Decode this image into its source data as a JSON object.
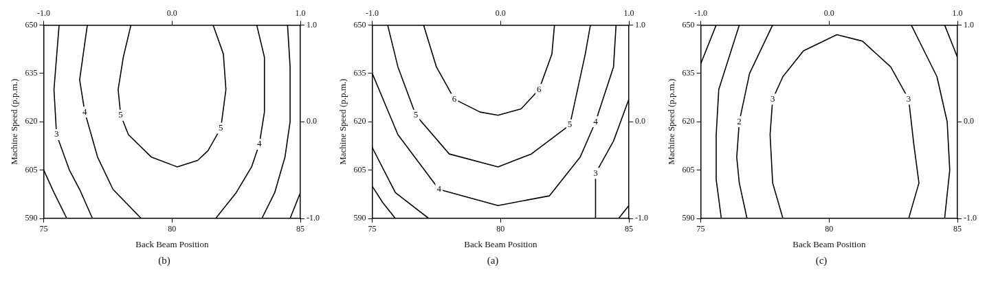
{
  "chart_data": [
    {
      "type": "line",
      "xlabel": "Back Beam Position",
      "ylabel": "Machine Speed (p.p.m.)",
      "annotations": [
        "(b)"
      ],
      "xlim": [
        75,
        85
      ],
      "xticks": [
        75,
        80,
        85
      ],
      "ylim": [
        590,
        650
      ],
      "yticks": [
        590,
        605,
        620,
        635,
        650
      ],
      "x2lim": [
        -1,
        1
      ],
      "x2ticks": [
        {
          "value": -1,
          "label": "-1.0"
        },
        {
          "value": 0,
          "label": "0.0"
        },
        {
          "value": 1,
          "label": "1.0"
        }
      ],
      "y2lim": [
        -1,
        1
      ],
      "y2ticks": [
        {
          "value": -1,
          "label": "-1.0"
        },
        {
          "value": 0,
          "label": "0.0"
        },
        {
          "value": 1,
          "label": "1.0"
        }
      ],
      "marker": "none",
      "line_style": "solid",
      "legend": false,
      "series": [
        {
          "color": "#000000",
          "x": [
            75.0,
            75.4,
            75.9
          ],
          "values": [
            605,
            598,
            590
          ]
        },
        {
          "name": "3",
          "color": "#000000",
          "x": [
            75.6,
            75.4,
            75.5,
            76.0,
            76.4,
            76.9
          ],
          "values": [
            650,
            630,
            616,
            605,
            599,
            590
          ]
        },
        {
          "name": "4",
          "color": "#000000",
          "x": [
            76.7,
            76.4,
            76.6,
            77.1,
            77.7,
            78.8
          ],
          "values": [
            650,
            633,
            623,
            609,
            599,
            590
          ]
        },
        {
          "name": "5",
          "color": "#000000",
          "x": [
            78.4,
            78.1,
            77.9,
            78.0,
            78.3,
            79.2,
            80.2,
            81.0,
            81.4,
            81.9,
            82.1,
            82.0,
            81.6
          ],
          "values": [
            650,
            640,
            630,
            622,
            616,
            609,
            606,
            608,
            611,
            618,
            630,
            641,
            650
          ]
        },
        {
          "name": "4",
          "color": "#000000",
          "x": [
            83.3,
            83.6,
            83.6,
            83.4,
            83.1,
            82.5,
            81.7
          ],
          "values": [
            650,
            640,
            623,
            613,
            606,
            598,
            590
          ]
        },
        {
          "color": "#000000",
          "x": [
            84.5,
            84.6,
            84.6,
            84.4,
            84.0,
            83.5
          ],
          "values": [
            650,
            637,
            620,
            609,
            598,
            590
          ]
        },
        {
          "color": "#000000",
          "x": [
            85.0,
            84.8,
            84.6
          ],
          "values": [
            598,
            594,
            590
          ]
        }
      ]
    },
    {
      "type": "line",
      "xlabel": "Back Beam Position",
      "ylabel": "Machine Speed (p.p.m.)",
      "annotations": [
        "(a)"
      ],
      "xlim": [
        75,
        85
      ],
      "xticks": [
        75,
        80,
        85
      ],
      "ylim": [
        590,
        650
      ],
      "yticks": [
        590,
        605,
        620,
        635,
        650
      ],
      "x2lim": [
        -1,
        1
      ],
      "x2ticks": [
        {
          "value": -1,
          "label": "-1.0"
        },
        {
          "value": 0,
          "label": "0.0"
        },
        {
          "value": 1,
          "label": "1.0"
        }
      ],
      "y2lim": [
        -1,
        1
      ],
      "y2ticks": [
        {
          "value": -1,
          "label": "-1.0"
        },
        {
          "value": 0,
          "label": "0.0"
        },
        {
          "value": 1,
          "label": "1.0"
        }
      ],
      "marker": "none",
      "line_style": "solid",
      "legend": false,
      "series": [
        {
          "name": "6",
          "color": "#000000",
          "x": [
            77.0,
            77.5,
            78.2,
            79.2,
            79.9,
            80.8,
            81.5,
            82.0,
            82.1
          ],
          "values": [
            650,
            637,
            627,
            623,
            622,
            624,
            630,
            641,
            650
          ]
        },
        {
          "name": "5",
          "color": "#000000",
          "x": [
            75.6,
            76.0,
            76.7,
            78.0,
            79.9,
            81.2,
            82.7,
            83.3,
            83.5
          ],
          "values": [
            650,
            637,
            622,
            610,
            606,
            610,
            619,
            641,
            650
          ]
        },
        {
          "name": "4",
          "color": "#000000",
          "x": [
            75.0,
            76.0,
            77.6,
            79.9,
            81.9,
            83.1,
            83.7,
            84.4,
            84.5
          ],
          "values": [
            635,
            616,
            599,
            594,
            597,
            609,
            620,
            637,
            650
          ]
        },
        {
          "color": "#000000",
          "x": [
            75.0,
            75.9,
            77.2
          ],
          "values": [
            612,
            598,
            590
          ]
        },
        {
          "name": "3",
          "color": "#000000",
          "x": [
            83.7,
            83.7,
            84.4,
            85.0
          ],
          "values": [
            590,
            604,
            614,
            627
          ]
        },
        {
          "color": "#000000",
          "x": [
            75.0,
            75.4,
            75.9
          ],
          "values": [
            600,
            595,
            590
          ]
        },
        {
          "color": "#000000",
          "x": [
            84.6,
            84.8,
            85.0
          ],
          "values": [
            590,
            592,
            594
          ]
        }
      ]
    },
    {
      "type": "line",
      "xlabel": "Back Beam Position",
      "ylabel": "Machine Speed (p.p.m.)",
      "annotations": [
        "(c)"
      ],
      "xlim": [
        75,
        85
      ],
      "xticks": [
        75,
        80,
        85
      ],
      "ylim": [
        590,
        650
      ],
      "yticks": [
        590,
        605,
        620,
        635,
        650
      ],
      "x2lim": [
        -1,
        1
      ],
      "x2ticks": [
        {
          "value": -1,
          "label": "-1.0"
        },
        {
          "value": 0,
          "label": "0.0"
        },
        {
          "value": 1,
          "label": "1.0"
        }
      ],
      "y2lim": [
        -1,
        1
      ],
      "y2ticks": [
        {
          "value": -1,
          "label": "-1.0"
        },
        {
          "value": 0,
          "label": "0.0"
        },
        {
          "value": 1,
          "label": "1.0"
        }
      ],
      "marker": "none",
      "line_style": "solid",
      "legend": false,
      "series": [
        {
          "color": "#000000",
          "x": [
            75.6,
            75.3,
            75.0
          ],
          "values": [
            650,
            644,
            638
          ]
        },
        {
          "color": "#000000",
          "x": [
            76.5,
            75.7,
            75.6,
            75.6,
            75.8
          ],
          "values": [
            650,
            630,
            616,
            602,
            590
          ]
        },
        {
          "name": "2",
          "color": "#000000",
          "x": [
            77.8,
            76.9,
            76.5,
            76.4,
            76.5,
            76.8
          ],
          "values": [
            650,
            635,
            620,
            609,
            601,
            590
          ]
        },
        {
          "name": "3",
          "color": "#000000",
          "x": [
            78.2,
            77.8,
            77.7,
            77.8,
            78.2,
            79.0,
            80.3,
            81.3,
            82.4,
            83.1,
            83.3,
            83.5,
            83.1
          ],
          "values": [
            590,
            601,
            616,
            627,
            634,
            642,
            647,
            645,
            637,
            627,
            613,
            601,
            590
          ]
        },
        {
          "color": "#000000",
          "x": [
            83.2,
            84.2,
            84.6,
            84.7,
            84.5
          ],
          "values": [
            650,
            634,
            620,
            605,
            590
          ]
        },
        {
          "color": "#000000",
          "x": [
            84.5,
            84.8,
            85.0
          ],
          "values": [
            650,
            644,
            640
          ]
        }
      ]
    }
  ]
}
